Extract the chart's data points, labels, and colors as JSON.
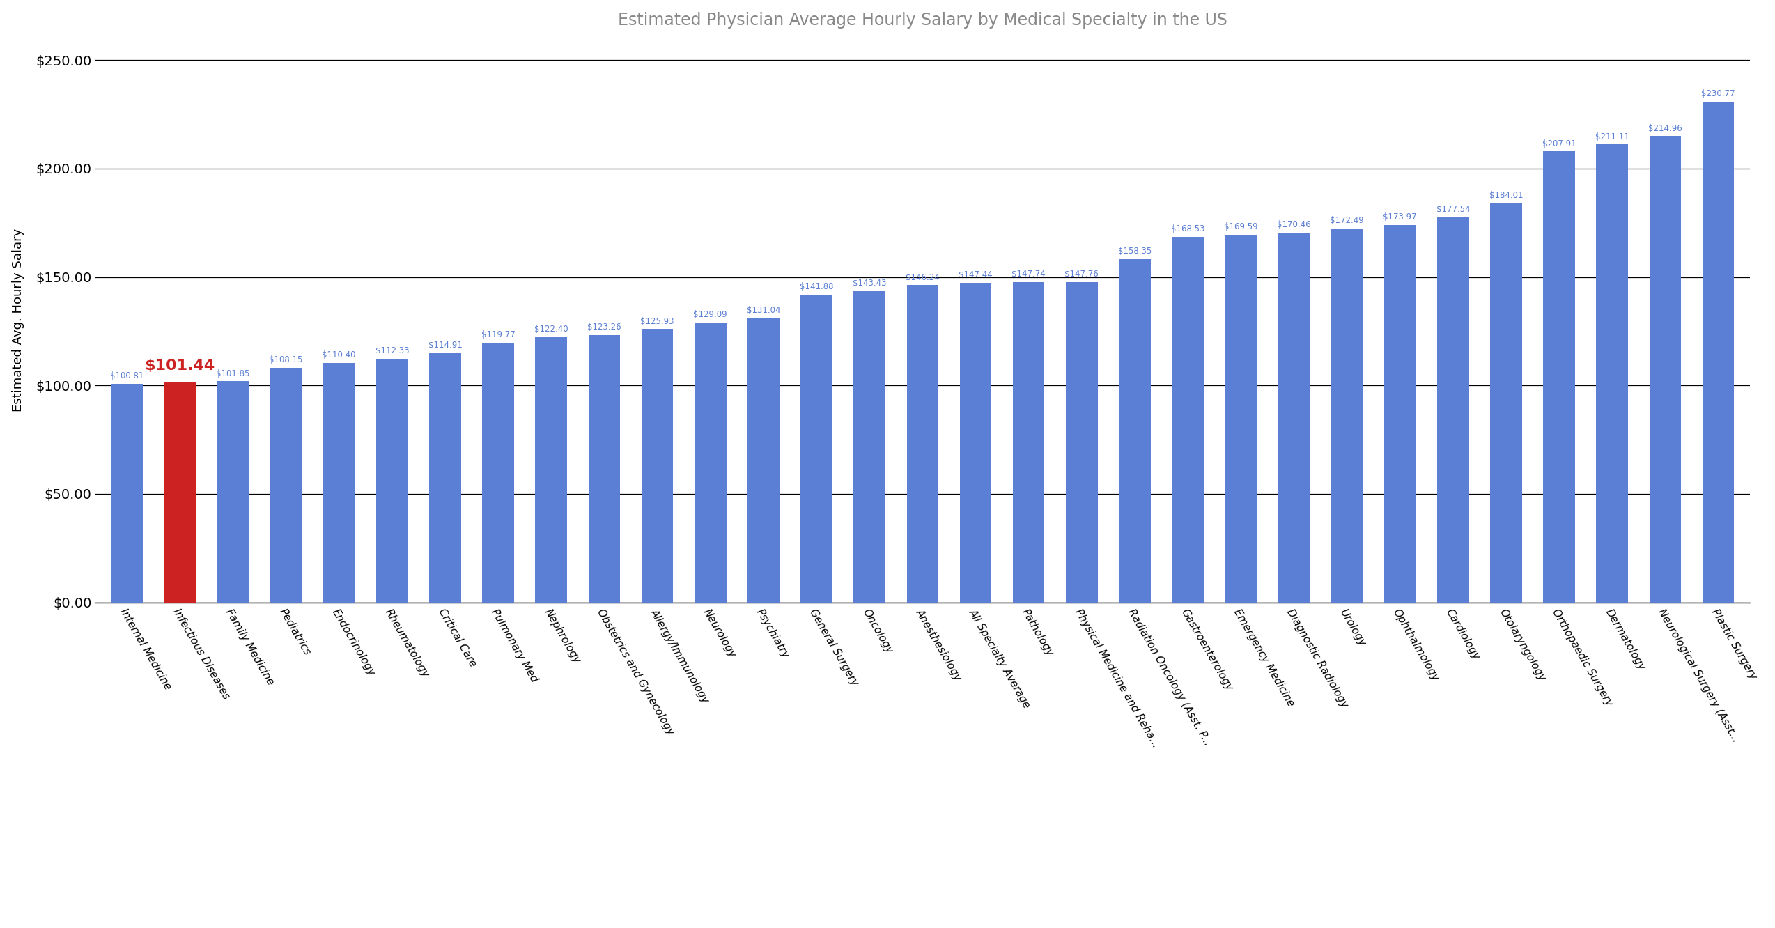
{
  "title": "Estimated Physician Average Hourly Salary by Medical Specialty in the US",
  "ylabel": "Estimated Avg. Hourly Salary",
  "categories": [
    "Internal Medicine",
    "Infectious Diseases",
    "Family Medicine",
    "Pediatrics",
    "Endocrinology",
    "Rheumatology",
    "Critical Care",
    "Pulmonary Med",
    "Nephrology",
    "Obstetrics and Gynecology",
    "Allergy/Immunology",
    "Neurology",
    "Psychiatry",
    "General Surgery",
    "Oncology",
    "Anesthesiology",
    "All Specialty Average",
    "Pathology",
    "Physical Medicine and Reha...",
    "Radiation Oncology (Asst. P...",
    "Gastroenterology",
    "Emergency Medicine",
    "Diagnostic Radiology",
    "Urology",
    "Ophthalmology",
    "Cardiology",
    "Otolaryngology",
    "Orthopaedic Surgery",
    "Dermatology",
    "Neurological Surgery (Asst...",
    "Plastic Surgery"
  ],
  "values": [
    100.81,
    101.44,
    101.85,
    108.15,
    110.4,
    112.33,
    114.91,
    119.77,
    122.4,
    123.26,
    125.93,
    129.09,
    131.04,
    141.88,
    143.43,
    146.24,
    147.44,
    147.74,
    147.76,
    158.35,
    168.53,
    169.59,
    170.46,
    172.49,
    173.97,
    177.54,
    184.01,
    207.91,
    211.11,
    214.96,
    230.77
  ],
  "highlighted_index": 1,
  "bar_color": "#5b7fd4",
  "highlight_color": "#cc2222",
  "highlight_label_color": "#cc2222",
  "normal_label_color": "#5b7fd4",
  "background_color": "#ffffff",
  "ylim": [
    0,
    260
  ],
  "yticks": [
    0,
    50,
    100,
    150,
    200,
    250
  ],
  "title_color": "#888888",
  "title_fontsize": 17,
  "label_fontsize": 8.5,
  "highlight_label_fontsize": 16,
  "ytick_fontsize": 14,
  "xtick_fontsize": 11,
  "ylabel_fontsize": 13
}
